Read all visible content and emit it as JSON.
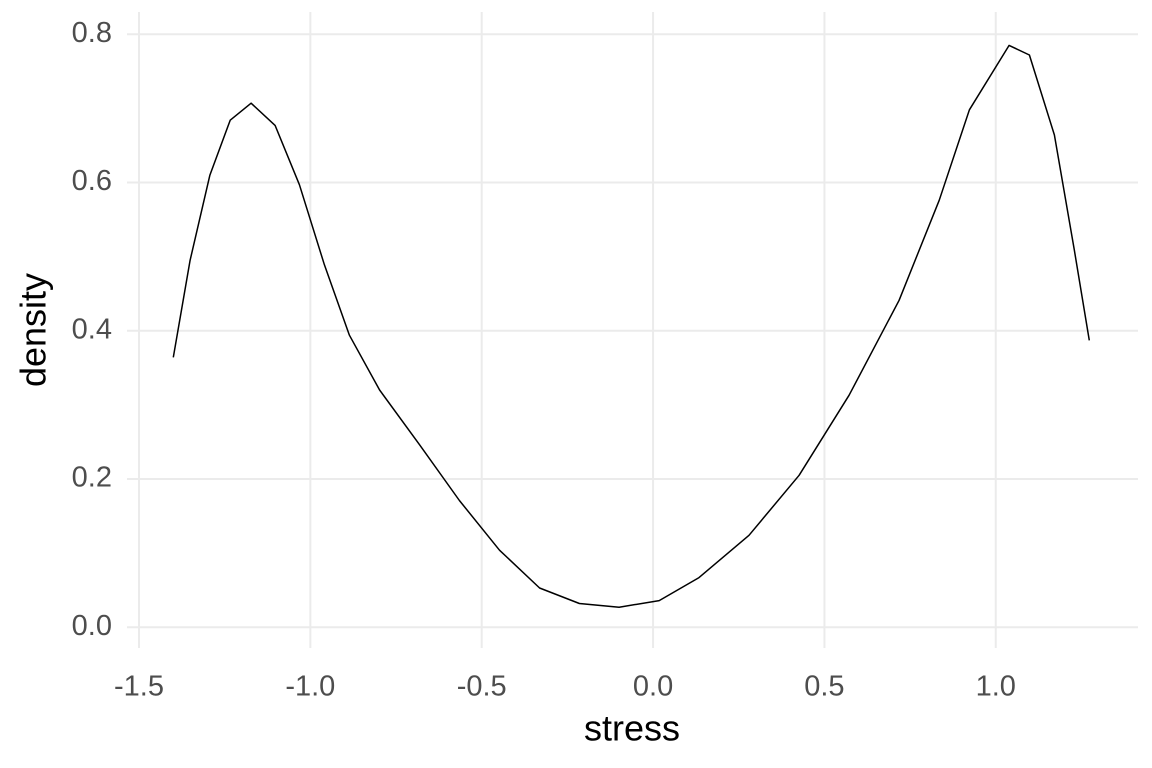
{
  "chart_data": {
    "type": "line",
    "x_label": "stress",
    "y_label": "density",
    "x": [
      -1.4,
      -1.351,
      -1.293,
      -1.234,
      -1.173,
      -1.103,
      -1.032,
      -0.959,
      -0.886,
      -0.798,
      -0.681,
      -0.565,
      -0.448,
      -0.331,
      -0.215,
      -0.099,
      0.018,
      0.134,
      0.28,
      0.426,
      0.572,
      0.718,
      0.835,
      0.923,
      1.039,
      1.098,
      1.171,
      1.229,
      1.273
    ],
    "values": [
      0.364,
      0.495,
      0.61,
      0.684,
      0.707,
      0.677,
      0.597,
      0.489,
      0.394,
      0.32,
      0.246,
      0.171,
      0.104,
      0.053,
      0.032,
      0.027,
      0.036,
      0.067,
      0.124,
      0.205,
      0.313,
      0.441,
      0.576,
      0.698,
      0.785,
      0.772,
      0.664,
      0.509,
      0.387
    ],
    "color": "#000000",
    "xlim": [
      -1.535,
      1.415
    ],
    "ylim": [
      -0.028,
      0.83
    ],
    "xticks": [
      -1.5,
      {
        "value": -1,
        "label": "-1.0"
      },
      -0.5,
      {
        "value": 0,
        "label": "0.0"
      },
      0.5,
      {
        "value": 1,
        "label": "1.0"
      }
    ],
    "yticks": [
      {
        "value": 0,
        "label": "0.0"
      },
      0.2,
      0.4,
      0.6,
      0.8
    ],
    "grid": true
  }
}
